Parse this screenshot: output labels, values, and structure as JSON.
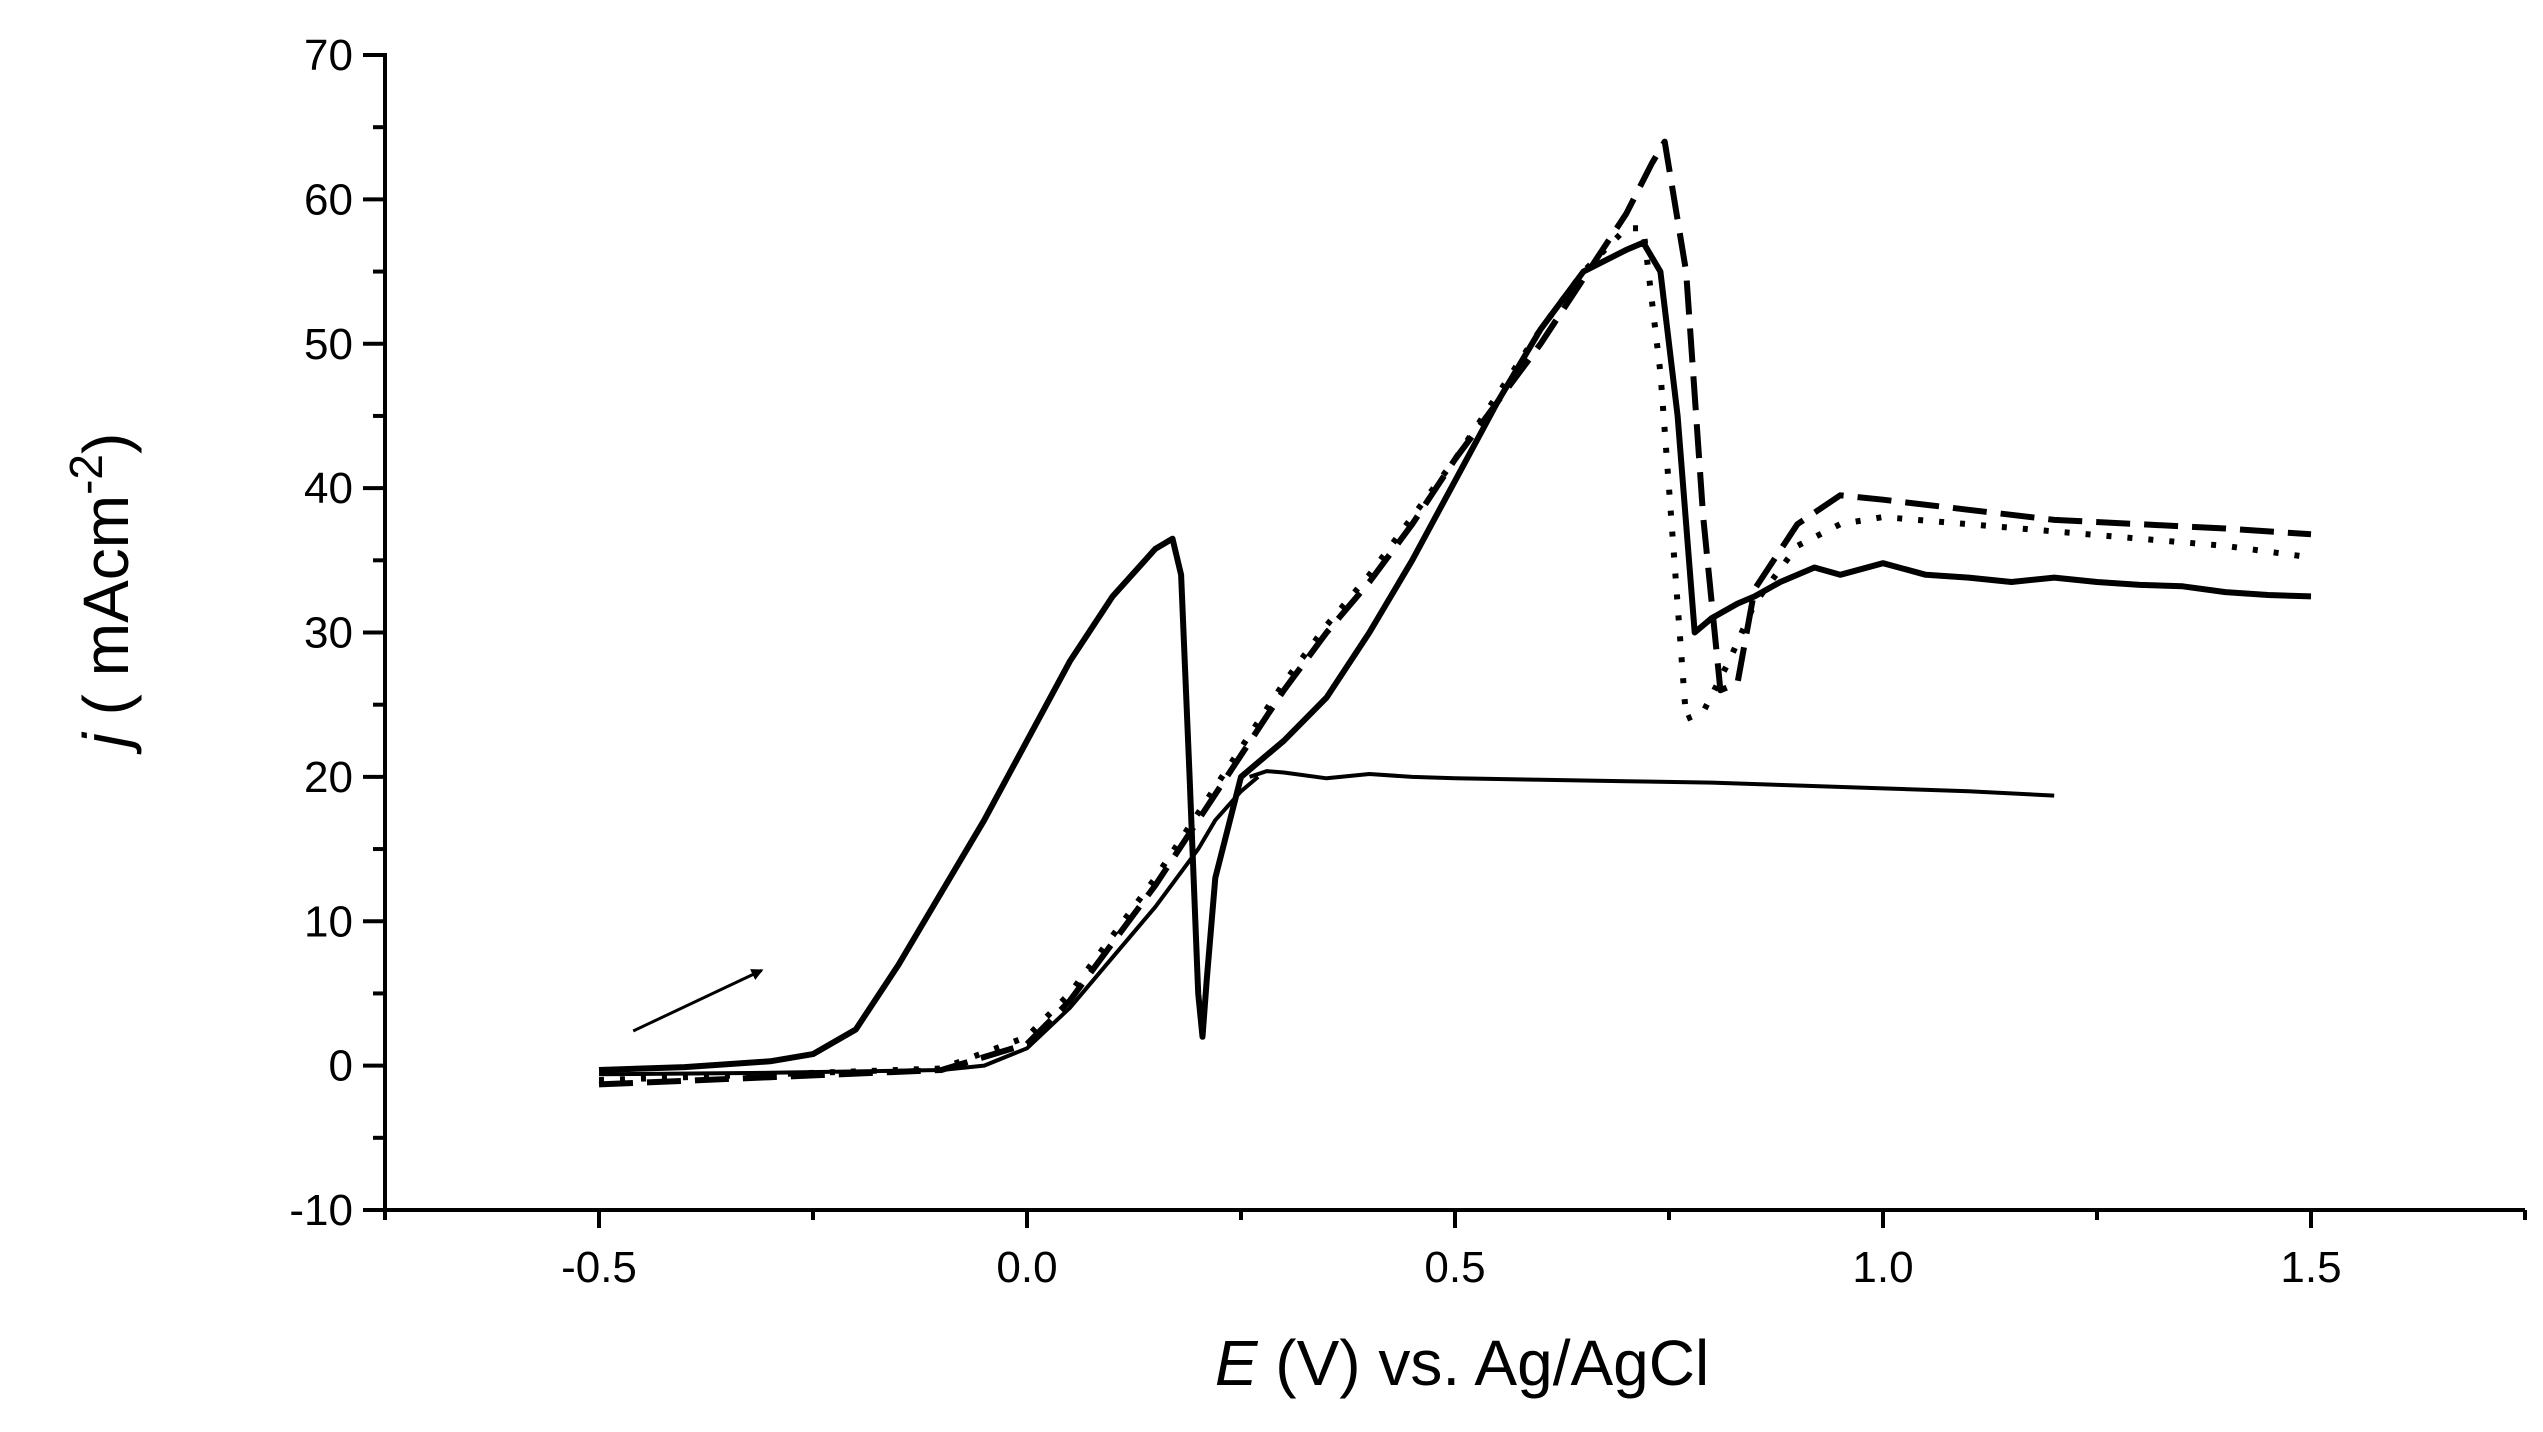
{
  "chart_data": {
    "type": "line",
    "title": "",
    "xlabel": {
      "italic": "E",
      "rest": " (V) vs. Ag/AgCl"
    },
    "ylabel": {
      "italic": "j",
      "rest": " ( mAcm",
      "sup": "-2",
      "close": ")"
    },
    "xlim": [
      -0.75,
      1.75
    ],
    "ylim": [
      -10,
      70
    ],
    "xticks": [
      -0.5,
      0.0,
      0.5,
      1.0,
      1.5
    ],
    "xtick_labels": [
      "-0.5",
      "0.0",
      "0.5",
      "1.0",
      "1.5"
    ],
    "yticks": [
      -10,
      0,
      10,
      20,
      30,
      40,
      50,
      60,
      70
    ],
    "ytick_labels": [
      "-10",
      "0",
      "10",
      "20",
      "30",
      "40",
      "50",
      "60",
      "70"
    ],
    "grid": false,
    "annotation": {
      "type": "arrow",
      "from": [
        -0.46,
        2.4
      ],
      "to": [
        -0.31,
        6.6
      ],
      "meaning": "scan direction"
    },
    "series": [
      {
        "name": "solid-forward",
        "style": "solid",
        "width": "thick",
        "x": [
          -0.5,
          -0.4,
          -0.3,
          -0.25,
          -0.2,
          -0.15,
          -0.1,
          -0.05,
          0.0,
          0.05,
          0.1,
          0.15,
          0.17,
          0.18,
          0.19,
          0.2,
          0.205,
          0.21,
          0.22,
          0.25,
          0.3,
          0.35,
          0.4,
          0.45,
          0.5,
          0.55,
          0.6,
          0.65,
          0.7,
          0.72,
          0.74,
          0.76,
          0.78,
          0.8,
          0.83,
          0.85,
          0.88,
          0.92,
          0.95,
          1.0,
          1.05,
          1.1,
          1.15,
          1.2,
          1.25,
          1.3,
          1.35,
          1.4,
          1.45,
          1.5
        ],
        "y": [
          -0.3,
          -0.1,
          0.3,
          0.8,
          2.5,
          7.0,
          12.0,
          17.0,
          22.5,
          28.0,
          32.5,
          35.8,
          36.5,
          34.0,
          20.0,
          5.0,
          2.0,
          6.0,
          13.0,
          20.0,
          22.5,
          25.5,
          30.0,
          35.0,
          40.5,
          46.0,
          51.0,
          55.0,
          56.5,
          57.0,
          55.0,
          45.0,
          30.0,
          31.0,
          32.0,
          32.5,
          33.5,
          34.5,
          34.0,
          34.8,
          34.0,
          33.8,
          33.5,
          33.8,
          33.5,
          33.3,
          33.2,
          32.8,
          32.6,
          32.5
        ]
      },
      {
        "name": "solid-reverse",
        "style": "solid",
        "width": "thin",
        "x": [
          1.2,
          1.1,
          1.0,
          0.9,
          0.8,
          0.7,
          0.6,
          0.5,
          0.45,
          0.4,
          0.35,
          0.3,
          0.28,
          0.26
        ],
        "y": [
          18.7,
          19.0,
          19.2,
          19.4,
          19.6,
          19.7,
          19.8,
          19.9,
          20.0,
          20.2,
          19.9,
          20.3,
          20.4,
          20.0
        ]
      },
      {
        "name": "solid-lower",
        "style": "solid",
        "width": "thin",
        "x": [
          -0.5,
          -0.3,
          -0.1,
          -0.05,
          0.0,
          0.05,
          0.1,
          0.15,
          0.2,
          0.22,
          0.25,
          0.27
        ],
        "y": [
          -0.6,
          -0.5,
          -0.3,
          0.0,
          1.2,
          4.0,
          7.5,
          11.0,
          15.0,
          17.0,
          19.0,
          20.0
        ]
      },
      {
        "name": "dashed",
        "style": "dashed",
        "width": "thick",
        "x": [
          -0.5,
          -0.3,
          -0.1,
          0.0,
          0.05,
          0.1,
          0.15,
          0.2,
          0.25,
          0.3,
          0.35,
          0.4,
          0.45,
          0.5,
          0.55,
          0.6,
          0.65,
          0.7,
          0.73,
          0.745,
          0.77,
          0.79,
          0.81,
          0.83,
          0.85,
          0.9,
          0.95,
          1.0,
          1.1,
          1.2,
          1.3,
          1.4,
          1.5
        ],
        "y": [
          -1.3,
          -0.8,
          -0.3,
          1.5,
          4.5,
          8.5,
          12.5,
          17.0,
          21.5,
          26.0,
          30.0,
          33.5,
          37.5,
          42.0,
          46.0,
          50.0,
          54.5,
          59.0,
          62.5,
          64.0,
          55.0,
          38.0,
          26.0,
          26.5,
          33.0,
          37.5,
          39.5,
          39.2,
          38.5,
          37.8,
          37.5,
          37.2,
          36.8
        ]
      },
      {
        "name": "dotted",
        "style": "dotted",
        "width": "thick",
        "x": [
          -0.5,
          -0.3,
          -0.1,
          0.0,
          0.05,
          0.1,
          0.15,
          0.2,
          0.25,
          0.3,
          0.35,
          0.4,
          0.45,
          0.5,
          0.55,
          0.6,
          0.65,
          0.7,
          0.72,
          0.74,
          0.75,
          0.77,
          0.79,
          0.82,
          0.85,
          0.9,
          0.95,
          1.0,
          1.1,
          1.2,
          1.3,
          1.4,
          1.5
        ],
        "y": [
          -1.0,
          -0.6,
          -0.2,
          2.0,
          5.0,
          9.0,
          13.0,
          17.5,
          22.0,
          26.5,
          30.5,
          34.0,
          38.0,
          42.0,
          46.5,
          51.0,
          55.0,
          58.0,
          58.0,
          48.0,
          40.0,
          24.0,
          24.5,
          28.0,
          32.0,
          36.0,
          37.5,
          38.0,
          37.5,
          37.0,
          36.5,
          36.0,
          35.2
        ]
      }
    ]
  }
}
